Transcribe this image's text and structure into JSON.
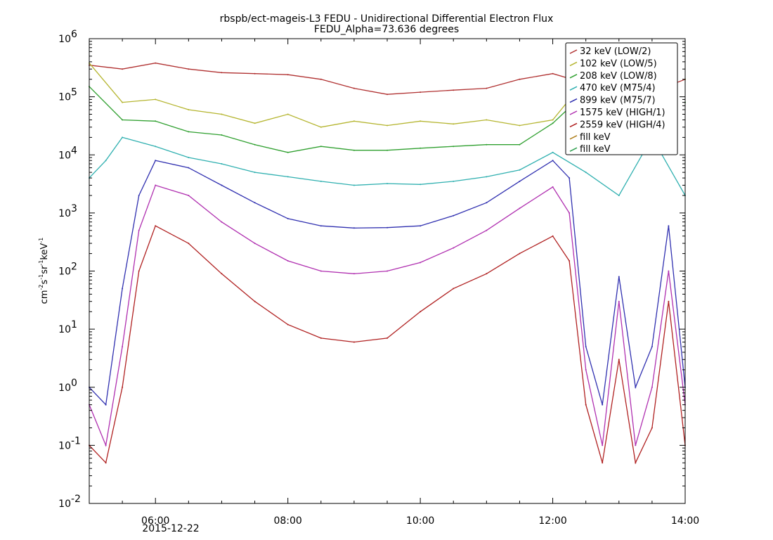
{
  "chart_data": {
    "type": "line",
    "title": "rbspb/ect-mageis-L3  FEDU - Unidirectional Differential Electron Flux",
    "subtitle": "FEDU_Alpha=73.636 degrees",
    "ylabel": {
      "base": "cm",
      "e1": "-2",
      "s": "s",
      "e2": "-1",
      "sr": "sr",
      "e3": "-1",
      "kev": "keV",
      "e4": "-1"
    },
    "ylim": [
      0.01,
      1000000
    ],
    "yscale": "log",
    "ytick_values": [
      0.01,
      0.1,
      1,
      10,
      100,
      1000,
      10000,
      100000,
      1000000
    ],
    "ytick_labels": [
      {
        "base": "10",
        "exp": "-2"
      },
      {
        "base": "10",
        "exp": "-1"
      },
      {
        "base": "10",
        "exp": "0"
      },
      {
        "base": "10",
        "exp": "1"
      },
      {
        "base": "10",
        "exp": "2"
      },
      {
        "base": "10",
        "exp": "3"
      },
      {
        "base": "10",
        "exp": "4"
      },
      {
        "base": "10",
        "exp": "5"
      },
      {
        "base": "10",
        "exp": "6"
      }
    ],
    "xlim": [
      "05:00",
      "14:00"
    ],
    "xticks": [
      {
        "x": "06:00",
        "label": "06:00"
      },
      {
        "x": "08:00",
        "label": "08:00"
      },
      {
        "x": "10:00",
        "label": "10:00"
      },
      {
        "x": "12:00",
        "label": "12:00"
      },
      {
        "x": "14:00",
        "label": "14:00"
      }
    ],
    "x_date_label": "2015-12-22",
    "grid": false,
    "legend_position": "top-right",
    "series": [
      {
        "name": "32 keV (LOW/2)",
        "color": "#b03030",
        "x": [
          "05:00",
          "05:30",
          "06:00",
          "06:30",
          "07:00",
          "07:30",
          "08:00",
          "08:30",
          "09:00",
          "09:30",
          "10:00",
          "10:30",
          "11:00",
          "11:30",
          "12:00",
          "12:30",
          "13:00",
          "13:30",
          "14:00"
        ],
        "values": [
          350000,
          300000,
          380000,
          300000,
          260000,
          250000,
          240000,
          200000,
          140000,
          110000,
          120000,
          130000,
          140000,
          200000,
          250000,
          170000,
          90000,
          120000,
          200000
        ]
      },
      {
        "name": "102 keV (LOW/5)",
        "color": "#b5b530",
        "x": [
          "05:00",
          "05:30",
          "06:00",
          "06:30",
          "07:00",
          "07:30",
          "08:00",
          "08:30",
          "09:00",
          "09:30",
          "10:00",
          "10:30",
          "11:00",
          "11:30",
          "12:00",
          "12:30",
          "13:00",
          "13:30",
          "14:00"
        ],
        "values": [
          380000,
          80000,
          90000,
          60000,
          50000,
          35000,
          50000,
          30000,
          38000,
          32000,
          38000,
          34000,
          40000,
          32000,
          40000,
          200000,
          null,
          null,
          200000
        ]
      },
      {
        "name": "208 keV (LOW/8)",
        "color": "#30a030",
        "x": [
          "05:00",
          "05:30",
          "06:00",
          "06:30",
          "07:00",
          "07:30",
          "08:00",
          "08:30",
          "09:00",
          "09:30",
          "10:00",
          "10:30",
          "11:00",
          "11:30",
          "12:00",
          "12:30",
          "13:00",
          "13:30",
          "14:00"
        ],
        "values": [
          150000,
          40000,
          38000,
          25000,
          22000,
          15000,
          11000,
          14000,
          12000,
          12000,
          13000,
          14000,
          15000,
          15000,
          35000,
          120000,
          null,
          null,
          80000
        ]
      },
      {
        "name": "470 keV (M75/4)",
        "color": "#30b0b0",
        "x": [
          "05:00",
          "05:15",
          "05:30",
          "06:00",
          "06:30",
          "07:00",
          "07:30",
          "08:00",
          "08:30",
          "09:00",
          "09:30",
          "10:00",
          "10:30",
          "11:00",
          "11:30",
          "12:00",
          "12:30",
          "13:00",
          "13:30",
          "14:00"
        ],
        "values": [
          4000,
          8000,
          20000,
          14000,
          9000,
          7000,
          5000,
          4200,
          3500,
          3000,
          3200,
          3100,
          3500,
          4200,
          5500,
          11000,
          5000,
          2000,
          20000,
          2000
        ]
      },
      {
        "name": "899 keV (M75/7)",
        "color": "#3030b0",
        "x": [
          "05:00",
          "05:15",
          "05:30",
          "05:45",
          "06:00",
          "06:30",
          "07:00",
          "07:30",
          "08:00",
          "08:30",
          "09:00",
          "09:30",
          "10:00",
          "10:30",
          "11:00",
          "11:30",
          "12:00",
          "12:15",
          "12:30",
          "12:45",
          "13:00",
          "13:15",
          "13:30",
          "13:45",
          "14:00"
        ],
        "values": [
          1,
          0.5,
          50,
          2000,
          8000,
          6000,
          3000,
          1500,
          800,
          600,
          550,
          560,
          600,
          900,
          1500,
          3500,
          8000,
          4000,
          5,
          0.5,
          80,
          1,
          5,
          600,
          1
        ]
      },
      {
        "name": "1575 keV (HIGH/1)",
        "color": "#b030b0",
        "x": [
          "05:00",
          "05:15",
          "05:30",
          "05:45",
          "06:00",
          "06:30",
          "07:00",
          "07:30",
          "08:00",
          "08:30",
          "09:00",
          "09:30",
          "10:00",
          "10:30",
          "11:00",
          "11:30",
          "12:00",
          "12:15",
          "12:30",
          "12:45",
          "13:00",
          "13:15",
          "13:30",
          "13:45",
          "14:00"
        ],
        "values": [
          0.5,
          0.1,
          5,
          500,
          3000,
          2000,
          700,
          300,
          150,
          100,
          90,
          100,
          140,
          250,
          500,
          1200,
          2800,
          1000,
          2,
          0.1,
          30,
          0.1,
          1,
          100,
          0.5
        ]
      },
      {
        "name": "2559 keV (HIGH/4)",
        "color": "#b02020",
        "x": [
          "05:00",
          "05:15",
          "05:30",
          "05:45",
          "06:00",
          "06:30",
          "07:00",
          "07:30",
          "08:00",
          "08:30",
          "09:00",
          "09:30",
          "10:00",
          "10:30",
          "11:00",
          "11:30",
          "12:00",
          "12:15",
          "12:30",
          "12:45",
          "13:00",
          "13:15",
          "13:30",
          "13:45",
          "14:00"
        ],
        "values": [
          0.1,
          0.05,
          1,
          100,
          600,
          300,
          90,
          30,
          12,
          7,
          6,
          7,
          20,
          50,
          90,
          200,
          400,
          150,
          0.5,
          0.05,
          3,
          0.05,
          0.2,
          30,
          0.1
        ]
      },
      {
        "name": "fill keV",
        "color": "#b08020",
        "x": [],
        "values": []
      },
      {
        "name": "fill keV",
        "color": "#30a050",
        "x": [],
        "values": []
      }
    ]
  }
}
